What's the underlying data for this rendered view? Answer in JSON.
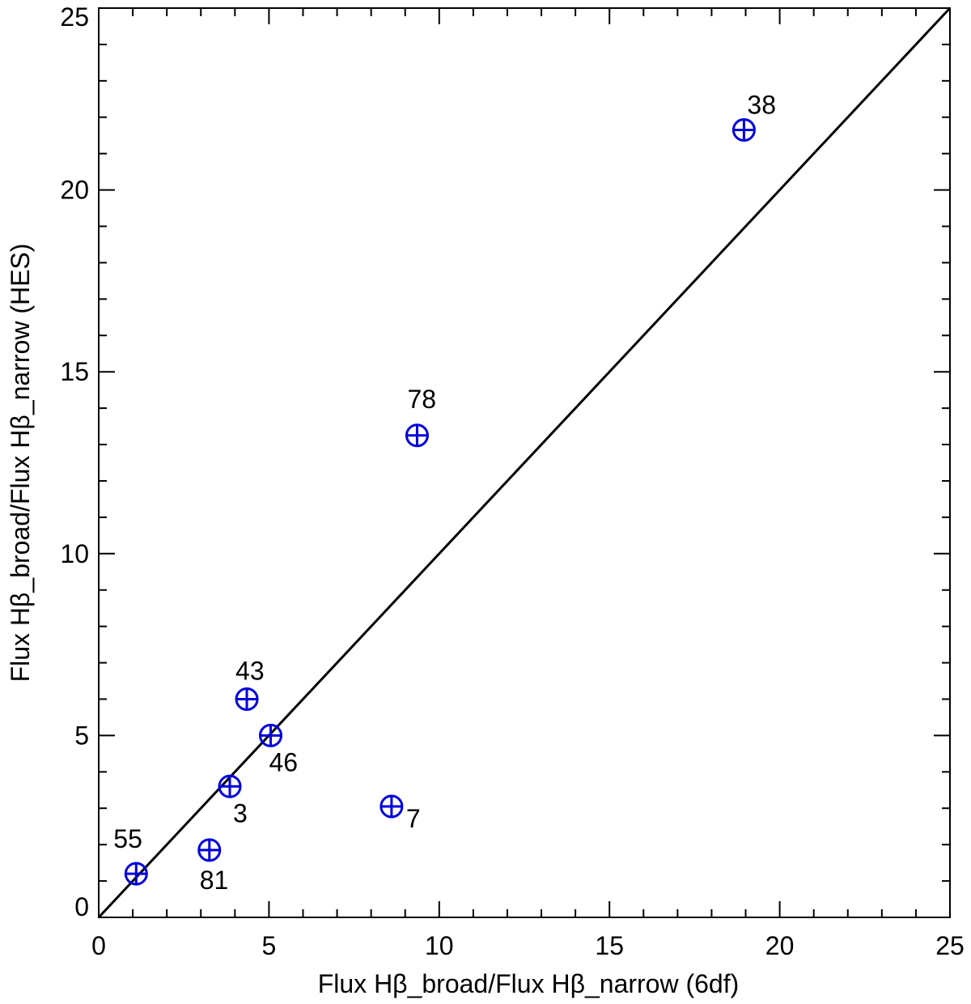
{
  "chart_data": {
    "type": "scatter",
    "title": "",
    "xlabel": "Flux Hβ_broad/Flux Hβ_narrow (6df)",
    "ylabel": "Flux Hβ_broad/Flux Hβ_narrow (HES)",
    "xlim": [
      0,
      25
    ],
    "ylim": [
      0,
      25
    ],
    "x_ticks": [
      "0",
      "5",
      "10",
      "15",
      "20",
      "25"
    ],
    "y_ticks": [
      "0",
      "5",
      "10",
      "15",
      "20",
      "25"
    ],
    "grid": false,
    "reference_line": {
      "x": [
        0,
        25
      ],
      "y": [
        0,
        25
      ]
    },
    "marker_color": "#0000dd",
    "line_color": "#000000",
    "points": [
      {
        "label": "38",
        "x": 18.95,
        "y": 21.65
      },
      {
        "label": "78",
        "x": 9.35,
        "y": 13.25
      },
      {
        "label": "43",
        "x": 4.35,
        "y": 6.0
      },
      {
        "label": "46",
        "x": 5.05,
        "y": 5.0
      },
      {
        "label": "3",
        "x": 3.85,
        "y": 3.6
      },
      {
        "label": "7",
        "x": 8.6,
        "y": 3.05
      },
      {
        "label": "55",
        "x": 1.1,
        "y": 1.2
      },
      {
        "label": "81",
        "x": 3.25,
        "y": 1.85
      }
    ]
  }
}
